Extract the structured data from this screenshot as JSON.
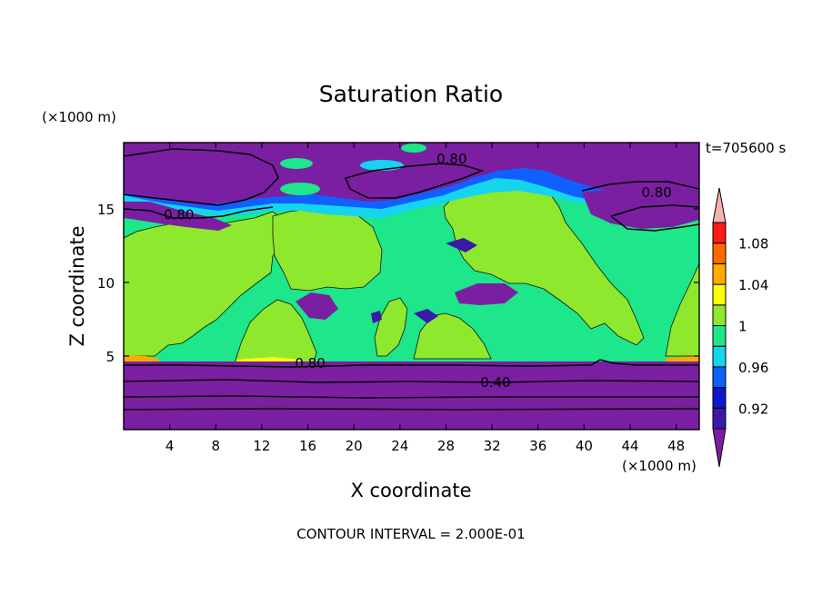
{
  "chart_data": {
    "type": "heatmap",
    "title": "Saturation Ratio",
    "xlabel": "X coordinate",
    "ylabel": "Z coordinate",
    "x_unit": "(×1000 m)",
    "y_unit": "(×1000 m)",
    "time_label": "t=705600 s",
    "footer": "CONTOUR INTERVAL = 2.000E-01",
    "xlim": [
      0,
      50
    ],
    "ylim": [
      0,
      19.5
    ],
    "x_ticks": [
      4,
      8,
      12,
      16,
      20,
      24,
      28,
      32,
      36,
      40,
      44,
      48
    ],
    "y_ticks": [
      5,
      10,
      15
    ],
    "colorbar": {
      "levels": [
        0.9,
        0.92,
        0.94,
        0.96,
        0.98,
        1.0,
        1.02,
        1.04,
        1.06,
        1.08,
        1.1
      ],
      "tick_labels": [
        "0.92",
        "0.96",
        "1",
        "1.04",
        "1.08"
      ],
      "tick_values": [
        0.92,
        0.96,
        1.0,
        1.04,
        1.08
      ],
      "colors": [
        "#7a1fa2",
        "#3a1aa8",
        "#0a1acb",
        "#1060ff",
        "#14d4f0",
        "#1ee68a",
        "#8ee82e",
        "#ffff00",
        "#ffaa00",
        "#ff6a00",
        "#ff1a14",
        "#f4b3b3"
      ]
    },
    "contour_labels": [
      {
        "text": "0.80",
        "x": 28.5,
        "z": 18.4
      },
      {
        "text": "0.80",
        "x": 46.3,
        "z": 16.1
      },
      {
        "text": "0.80",
        "x": 4.8,
        "z": 14.6
      },
      {
        "text": "0.80",
        "x": 16.2,
        "z": 4.5
      },
      {
        "text": "0.40",
        "x": 32.3,
        "z": 3.2
      }
    ],
    "regions": {
      "lower_layer_z": [
        0,
        5
      ],
      "lower_layer_value": "< 0.90",
      "mid_layer_value": "0.98 - 1.02",
      "upper_layer_z": [
        17,
        19.5
      ],
      "upper_layer_value": "< 0.90"
    }
  }
}
